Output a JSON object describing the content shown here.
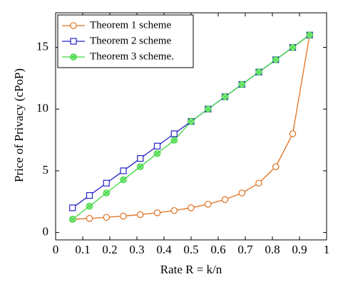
{
  "chart_data": {
    "type": "line",
    "xlabel": "Rate R = k/n",
    "ylabel": "Price of Privacy (cPoP)",
    "x": [
      0.0625,
      0.125,
      0.1875,
      0.25,
      0.3125,
      0.375,
      0.4375,
      0.5,
      0.5625,
      0.625,
      0.6875,
      0.75,
      0.8125,
      0.875,
      0.9375
    ],
    "series": [
      {
        "name": "Theorem 1 scheme",
        "color": "#e0701e",
        "marker": "circle",
        "values": [
          1.07,
          1.14,
          1.23,
          1.33,
          1.45,
          1.6,
          1.78,
          2.0,
          2.29,
          2.67,
          3.2,
          4.0,
          5.33,
          8.0,
          16.0
        ]
      },
      {
        "name": "Theorem 2 scheme",
        "color": "#2323c8",
        "marker": "square",
        "values": [
          2,
          3,
          4,
          5,
          6,
          7,
          8,
          9,
          10,
          11,
          12,
          13,
          14,
          15,
          16
        ]
      },
      {
        "name": "Theorem 3 scheme.",
        "color": "#3fd83f",
        "marker": "otimes",
        "values": [
          1.07,
          2.13,
          3.2,
          4.27,
          5.33,
          6.4,
          7.47,
          9,
          10,
          11,
          12,
          13,
          14,
          15,
          16
        ]
      }
    ],
    "xlim": [
      0,
      1
    ],
    "ylim": [
      -0.6,
      17.8
    ],
    "xticks": [
      0,
      0.1,
      0.2,
      0.3,
      0.4,
      0.5,
      0.6,
      0.7,
      0.8,
      0.9,
      1
    ],
    "yticks": [
      0,
      5,
      10,
      15
    ],
    "legend": "upper-left"
  }
}
